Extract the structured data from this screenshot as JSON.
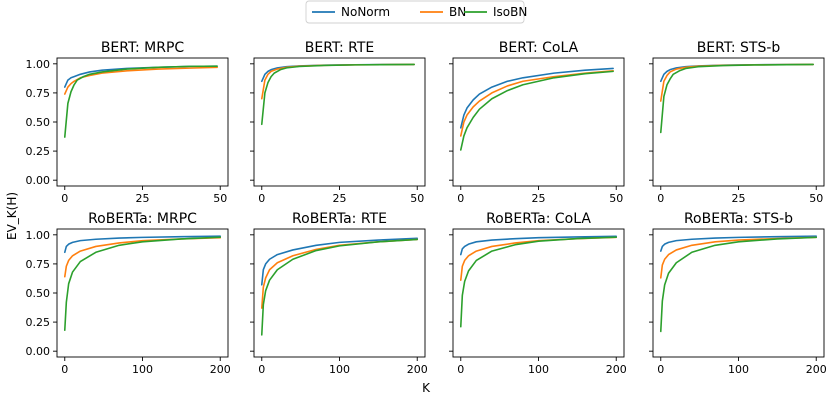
{
  "legend": [
    {
      "name": "NoNorm",
      "color": "#1f77b4"
    },
    {
      "name": "BN",
      "color": "#ff7f0e"
    },
    {
      "name": "IsoBN",
      "color": "#2ca02c"
    }
  ],
  "ylabel": "EV_K(H)",
  "xlabel": "K",
  "chart_data": [
    {
      "type": "line",
      "title": "BERT: MRPC",
      "xlim": [
        0,
        50
      ],
      "ylim": [
        0,
        1.0
      ],
      "xticks": [
        0,
        25,
        50
      ],
      "yticks": [
        "0.00",
        "0.25",
        "0.50",
        "0.75",
        "1.00"
      ],
      "series": [
        {
          "name": "NoNorm",
          "x": [
            0,
            1,
            2,
            3,
            5,
            8,
            12,
            20,
            30,
            40,
            49
          ],
          "values": [
            0.8,
            0.86,
            0.88,
            0.89,
            0.91,
            0.93,
            0.945,
            0.96,
            0.97,
            0.978,
            0.98
          ]
        },
        {
          "name": "BN",
          "x": [
            0,
            1,
            2,
            3,
            5,
            8,
            12,
            20,
            30,
            40,
            49
          ],
          "values": [
            0.74,
            0.8,
            0.83,
            0.85,
            0.88,
            0.9,
            0.92,
            0.94,
            0.955,
            0.963,
            0.97
          ]
        },
        {
          "name": "IsoBN",
          "x": [
            0,
            1,
            2,
            3,
            4,
            6,
            8,
            12,
            20,
            30,
            40,
            49
          ],
          "values": [
            0.37,
            0.66,
            0.76,
            0.82,
            0.86,
            0.89,
            0.91,
            0.93,
            0.955,
            0.97,
            0.978,
            0.98
          ]
        }
      ]
    },
    {
      "type": "line",
      "title": "BERT: RTE",
      "xlim": [
        0,
        50
      ],
      "ylim": [
        0,
        1.0
      ],
      "xticks": [
        0,
        25,
        50
      ],
      "yticks": [
        "0.00",
        "0.25",
        "0.50",
        "0.75",
        "1.00"
      ],
      "series": [
        {
          "name": "NoNorm",
          "x": [
            0,
            1,
            2,
            3,
            5,
            8,
            12,
            20,
            30,
            49
          ],
          "values": [
            0.85,
            0.91,
            0.935,
            0.95,
            0.965,
            0.975,
            0.982,
            0.988,
            0.992,
            0.995
          ]
        },
        {
          "name": "BN",
          "x": [
            0,
            1,
            2,
            3,
            5,
            8,
            12,
            20,
            30,
            49
          ],
          "values": [
            0.7,
            0.86,
            0.91,
            0.935,
            0.955,
            0.97,
            0.98,
            0.987,
            0.991,
            0.995
          ]
        },
        {
          "name": "IsoBN",
          "x": [
            0,
            1,
            2,
            3,
            4,
            6,
            8,
            12,
            20,
            30,
            49
          ],
          "values": [
            0.48,
            0.75,
            0.84,
            0.89,
            0.92,
            0.95,
            0.965,
            0.977,
            0.986,
            0.991,
            0.995
          ]
        }
      ]
    },
    {
      "type": "line",
      "title": "BERT: CoLA",
      "xlim": [
        0,
        50
      ],
      "ylim": [
        0,
        1.0
      ],
      "xticks": [
        0,
        25,
        50
      ],
      "yticks": [
        "0.00",
        "0.25",
        "0.50",
        "0.75",
        "1.00"
      ],
      "series": [
        {
          "name": "NoNorm",
          "x": [
            0,
            1,
            2,
            4,
            6,
            10,
            15,
            20,
            30,
            40,
            49
          ],
          "values": [
            0.45,
            0.56,
            0.62,
            0.69,
            0.74,
            0.8,
            0.85,
            0.88,
            0.92,
            0.945,
            0.96
          ]
        },
        {
          "name": "BN",
          "x": [
            0,
            1,
            2,
            4,
            6,
            10,
            15,
            20,
            30,
            40,
            49
          ],
          "values": [
            0.38,
            0.5,
            0.56,
            0.63,
            0.68,
            0.75,
            0.81,
            0.85,
            0.89,
            0.92,
            0.94
          ]
        },
        {
          "name": "IsoBN",
          "x": [
            0,
            1,
            2,
            4,
            6,
            10,
            15,
            20,
            30,
            40,
            49
          ],
          "values": [
            0.26,
            0.38,
            0.45,
            0.54,
            0.61,
            0.7,
            0.77,
            0.82,
            0.88,
            0.915,
            0.935
          ]
        }
      ]
    },
    {
      "type": "line",
      "title": "BERT: STS-b",
      "xlim": [
        0,
        50
      ],
      "ylim": [
        0,
        1.0
      ],
      "xticks": [
        0,
        25,
        50
      ],
      "yticks": [
        "0.00",
        "0.25",
        "0.50",
        "0.75",
        "1.00"
      ],
      "series": [
        {
          "name": "NoNorm",
          "x": [
            0,
            1,
            2,
            3,
            5,
            8,
            12,
            20,
            30,
            49
          ],
          "values": [
            0.85,
            0.91,
            0.935,
            0.95,
            0.965,
            0.975,
            0.982,
            0.988,
            0.992,
            0.995
          ]
        },
        {
          "name": "BN",
          "x": [
            0,
            1,
            2,
            3,
            5,
            8,
            12,
            20,
            30,
            49
          ],
          "values": [
            0.68,
            0.85,
            0.9,
            0.93,
            0.955,
            0.97,
            0.98,
            0.987,
            0.991,
            0.995
          ]
        },
        {
          "name": "IsoBN",
          "x": [
            0,
            1,
            2,
            3,
            4,
            6,
            8,
            12,
            20,
            30,
            49
          ],
          "values": [
            0.41,
            0.72,
            0.82,
            0.87,
            0.91,
            0.94,
            0.96,
            0.975,
            0.985,
            0.99,
            0.995
          ]
        }
      ]
    },
    {
      "type": "line",
      "title": "RoBERTa: MRPC",
      "xlim": [
        0,
        200
      ],
      "ylim": [
        0,
        1.0
      ],
      "xticks": [
        0,
        100,
        200
      ],
      "yticks": [
        "0.00",
        "0.25",
        "0.50",
        "0.75",
        "1.00"
      ],
      "series": [
        {
          "name": "NoNorm",
          "x": [
            0,
            2,
            5,
            10,
            20,
            40,
            70,
            100,
            150,
            200
          ],
          "values": [
            0.85,
            0.9,
            0.92,
            0.935,
            0.95,
            0.962,
            0.972,
            0.978,
            0.984,
            0.988
          ]
        },
        {
          "name": "BN",
          "x": [
            0,
            2,
            5,
            10,
            20,
            40,
            70,
            100,
            150,
            200
          ],
          "values": [
            0.64,
            0.73,
            0.78,
            0.82,
            0.86,
            0.9,
            0.93,
            0.95,
            0.965,
            0.975
          ]
        },
        {
          "name": "IsoBN",
          "x": [
            0,
            2,
            5,
            10,
            20,
            40,
            70,
            100,
            150,
            200
          ],
          "values": [
            0.18,
            0.42,
            0.58,
            0.68,
            0.77,
            0.85,
            0.91,
            0.94,
            0.965,
            0.98
          ]
        }
      ]
    },
    {
      "type": "line",
      "title": "RoBERTa: RTE",
      "xlim": [
        0,
        200
      ],
      "ylim": [
        0,
        1.0
      ],
      "xticks": [
        0,
        100,
        200
      ],
      "yticks": [
        "0.00",
        "0.25",
        "0.50",
        "0.75",
        "1.00"
      ],
      "series": [
        {
          "name": "NoNorm",
          "x": [
            0,
            2,
            5,
            10,
            20,
            40,
            70,
            100,
            150,
            200
          ],
          "values": [
            0.57,
            0.7,
            0.75,
            0.79,
            0.83,
            0.87,
            0.91,
            0.935,
            0.955,
            0.97
          ]
        },
        {
          "name": "BN",
          "x": [
            0,
            2,
            5,
            10,
            20,
            40,
            70,
            100,
            150,
            200
          ],
          "values": [
            0.37,
            0.55,
            0.63,
            0.7,
            0.76,
            0.82,
            0.875,
            0.91,
            0.94,
            0.96
          ]
        },
        {
          "name": "IsoBN",
          "x": [
            0,
            2,
            5,
            10,
            20,
            40,
            70,
            100,
            150,
            200
          ],
          "values": [
            0.14,
            0.4,
            0.52,
            0.61,
            0.7,
            0.79,
            0.865,
            0.905,
            0.94,
            0.96
          ]
        }
      ]
    },
    {
      "type": "line",
      "title": "RoBERTa: CoLA",
      "xlim": [
        0,
        200
      ],
      "ylim": [
        0,
        1.0
      ],
      "xticks": [
        0,
        100,
        200
      ],
      "yticks": [
        "0.00",
        "0.25",
        "0.50",
        "0.75",
        "1.00"
      ],
      "series": [
        {
          "name": "NoNorm",
          "x": [
            0,
            2,
            5,
            10,
            20,
            40,
            70,
            100,
            150,
            200
          ],
          "values": [
            0.83,
            0.88,
            0.9,
            0.92,
            0.94,
            0.955,
            0.967,
            0.975,
            0.982,
            0.987
          ]
        },
        {
          "name": "BN",
          "x": [
            0,
            2,
            5,
            10,
            20,
            40,
            70,
            100,
            150,
            200
          ],
          "values": [
            0.61,
            0.73,
            0.78,
            0.82,
            0.86,
            0.9,
            0.93,
            0.95,
            0.967,
            0.978
          ]
        },
        {
          "name": "IsoBN",
          "x": [
            0,
            2,
            5,
            10,
            20,
            40,
            70,
            100,
            150,
            200
          ],
          "values": [
            0.21,
            0.48,
            0.6,
            0.69,
            0.78,
            0.86,
            0.915,
            0.945,
            0.968,
            0.98
          ]
        }
      ]
    },
    {
      "type": "line",
      "title": "RoBERTa: STS-b",
      "xlim": [
        0,
        200
      ],
      "ylim": [
        0,
        1.0
      ],
      "xticks": [
        0,
        100,
        200
      ],
      "yticks": [
        "0.00",
        "0.25",
        "0.50",
        "0.75",
        "1.00"
      ],
      "series": [
        {
          "name": "NoNorm",
          "x": [
            0,
            2,
            5,
            10,
            20,
            40,
            70,
            100,
            150,
            200
          ],
          "values": [
            0.86,
            0.9,
            0.92,
            0.935,
            0.95,
            0.962,
            0.972,
            0.978,
            0.984,
            0.988
          ]
        },
        {
          "name": "BN",
          "x": [
            0,
            2,
            5,
            10,
            20,
            40,
            70,
            100,
            150,
            200
          ],
          "values": [
            0.63,
            0.74,
            0.79,
            0.83,
            0.87,
            0.91,
            0.94,
            0.955,
            0.968,
            0.978
          ]
        },
        {
          "name": "IsoBN",
          "x": [
            0,
            2,
            5,
            10,
            20,
            40,
            70,
            100,
            150,
            200
          ],
          "values": [
            0.17,
            0.43,
            0.57,
            0.67,
            0.76,
            0.85,
            0.91,
            0.94,
            0.965,
            0.978
          ]
        }
      ]
    }
  ]
}
